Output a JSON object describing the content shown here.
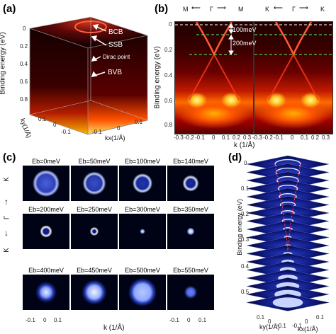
{
  "panel_a": {
    "label": "(a)",
    "ylabel": "Binding energy (eV)",
    "yticks": [
      "0",
      "0.2",
      "0.4",
      "0.6",
      "0.8"
    ],
    "kx_label": "kx(1/Å)",
    "ky_label": "ky(1/Å)",
    "kx_ticks": [
      "-0.1",
      "0",
      "0.1"
    ],
    "ky_ticks": [
      "0.1",
      "0",
      "-0.1"
    ],
    "annotations": [
      "BCB",
      "SSB",
      "Dirac point",
      "BVB"
    ]
  },
  "panel_b": {
    "label": "(b)",
    "left_header": [
      "M",
      "Γ",
      "M"
    ],
    "right_header": [
      "K",
      "Γ",
      "K"
    ],
    "ylabel": "Binding energy (eV)",
    "yticks": [
      "0",
      "0.2",
      "0.4",
      "0.6",
      "0.8"
    ],
    "xlabel": "k (1/Å)",
    "xticks": [
      "-0.3",
      "-0.2",
      "-0.1",
      "0",
      "0.1",
      "0.2",
      "0.3"
    ],
    "annot_100": "100meV",
    "annot_200": "200meV"
  },
  "panel_c": {
    "label": "(c)",
    "tiles": [
      "Eb=0meV",
      "Eb=50meV",
      "Eb=100meV",
      "Eb=140meV",
      "Eb=200meV",
      "Eb=250meV",
      "Eb=300meV",
      "Eb=350meV",
      "Eb=400meV",
      "Eb=450meV",
      "Eb=500meV",
      "Eb=550meV"
    ],
    "side_label_top": "K",
    "side_label_mid": "Γ",
    "side_label_bottom": "K",
    "xlabel": "k (1/Å)",
    "xticks": [
      "-0.1",
      "0",
      "0.1",
      "-0.1",
      "0",
      "0.1"
    ]
  },
  "panel_d": {
    "label": "(d)",
    "ylabel": "Binding energy (eV)",
    "yticks": [
      "0",
      "0.1",
      "0.2",
      "0.3",
      "0.4",
      "0.5"
    ],
    "ky_label": "ky(1/Å)",
    "kx_label": "kx(1/Å)",
    "ky_ticks": [
      "0.1",
      "0",
      "-0.1"
    ],
    "kx_ticks": [
      "-0.1",
      "0",
      "0.1"
    ]
  },
  "colors": {
    "heat_dark": "#1a0000",
    "heat_mid": "#ff4a00",
    "heat_bright": "#fff3a0",
    "blue_dark": "#000316",
    "blue_bright": "#7fa0ff",
    "dashed_white": "#ffffff",
    "dashed_green": "#55ff55"
  }
}
